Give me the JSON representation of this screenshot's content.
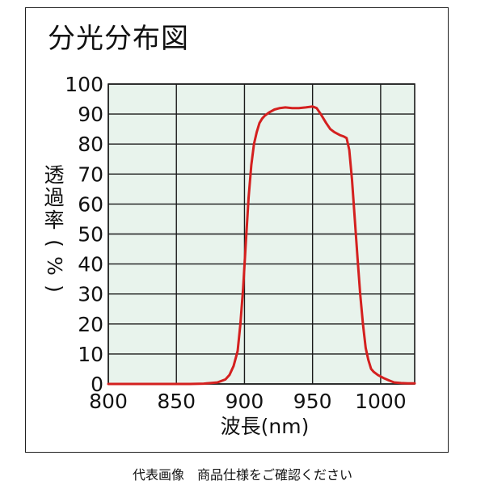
{
  "title": "分光分布図",
  "footer_note": "代表画像　商品仕様をご確認ください",
  "colors": {
    "plot_background": "#e8f3ec",
    "grid": "#1a1a1a",
    "curve": "#d4201f"
  },
  "chart_data": {
    "type": "line",
    "title": "分光分布図",
    "xlabel": "波長(nm)",
    "ylabel": "透過率(%)",
    "xlim": [
      800,
      1025
    ],
    "ylim": [
      0,
      100
    ],
    "x_ticks": [
      800,
      850,
      900,
      950,
      1000
    ],
    "y_ticks": [
      0,
      10,
      20,
      30,
      40,
      50,
      60,
      70,
      80,
      90,
      100
    ],
    "grid": true,
    "series": [
      {
        "x": [
          800,
          820,
          840,
          860,
          870,
          875,
          880,
          883,
          886,
          889,
          892,
          895,
          897,
          899,
          901,
          903,
          905,
          907,
          909,
          911,
          913,
          915,
          918,
          922,
          926,
          930,
          935,
          940,
          945,
          950,
          953,
          956,
          960,
          963,
          966,
          970,
          973,
          975,
          977,
          979,
          981,
          983,
          985,
          987,
          989,
          991,
          993,
          995,
          998,
          1002,
          1006,
          1010,
          1015,
          1020,
          1025
        ],
        "y": [
          0,
          0,
          0,
          0,
          0.1,
          0.3,
          0.5,
          1,
          1.5,
          3,
          6,
          11,
          20,
          32,
          47,
          62,
          73,
          80,
          84,
          87,
          88.5,
          89.5,
          90.5,
          91.5,
          92,
          92.2,
          92,
          92,
          92.2,
          92.5,
          92,
          90,
          87,
          85,
          84,
          83,
          82.5,
          82,
          78,
          68,
          55,
          42,
          30,
          20,
          12,
          8,
          5,
          4,
          3,
          2,
          1.2,
          0.5,
          0.3,
          0.2,
          0.2
        ]
      }
    ]
  }
}
